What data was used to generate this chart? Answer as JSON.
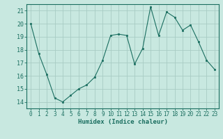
{
  "x": [
    0,
    1,
    2,
    3,
    4,
    5,
    6,
    7,
    8,
    9,
    10,
    11,
    12,
    13,
    14,
    15,
    16,
    17,
    18,
    19,
    20,
    21,
    22,
    23
  ],
  "y": [
    20.0,
    17.7,
    16.1,
    14.3,
    14.0,
    14.5,
    15.0,
    15.3,
    15.9,
    17.2,
    19.1,
    19.2,
    19.1,
    16.9,
    18.1,
    21.3,
    19.1,
    20.9,
    20.5,
    19.5,
    19.9,
    18.6,
    17.2,
    16.5
  ],
  "line_color": "#1a6e60",
  "marker_color": "#1a6e60",
  "bg_color": "#c8e8e0",
  "grid_color": "#a8ccc4",
  "axis_color": "#1a6e60",
  "xlabel": "Humidex (Indice chaleur)",
  "ylim": [
    13.5,
    21.5
  ],
  "xlim": [
    -0.5,
    23.5
  ],
  "yticks": [
    14,
    15,
    16,
    17,
    18,
    19,
    20,
    21
  ],
  "xticks": [
    0,
    1,
    2,
    3,
    4,
    5,
    6,
    7,
    8,
    9,
    10,
    11,
    12,
    13,
    14,
    15,
    16,
    17,
    18,
    19,
    20,
    21,
    22,
    23
  ],
  "font_color": "#1a6e60",
  "xlabel_fontsize": 6.5,
  "tick_fontsize": 5.5,
  "ytick_fontsize": 6.0
}
